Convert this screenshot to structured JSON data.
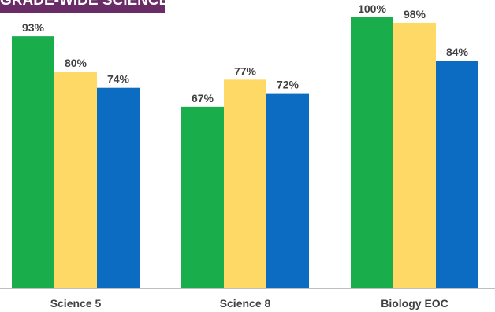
{
  "chart_data": {
    "type": "bar",
    "title": "GRADE-WIDE SCIENCE",
    "categories": [
      "Science 5",
      "Science 8",
      "Biology EOC"
    ],
    "series": [
      {
        "values": [
          93,
          67,
          100
        ],
        "labels": [
          "93%",
          "67%",
          "100%"
        ],
        "color": "#1aad4b"
      },
      {
        "values": [
          80,
          77,
          98
        ],
        "labels": [
          "80%",
          "77%",
          "98%"
        ],
        "color": "#ffd966"
      },
      {
        "values": [
          74,
          72,
          84
        ],
        "labels": [
          "74%",
          "72%",
          "84%"
        ],
        "color": "#0b6cc2"
      }
    ],
    "ylim": [
      0,
      100
    ],
    "grid": false,
    "axis_color": "#bfbfbf"
  }
}
